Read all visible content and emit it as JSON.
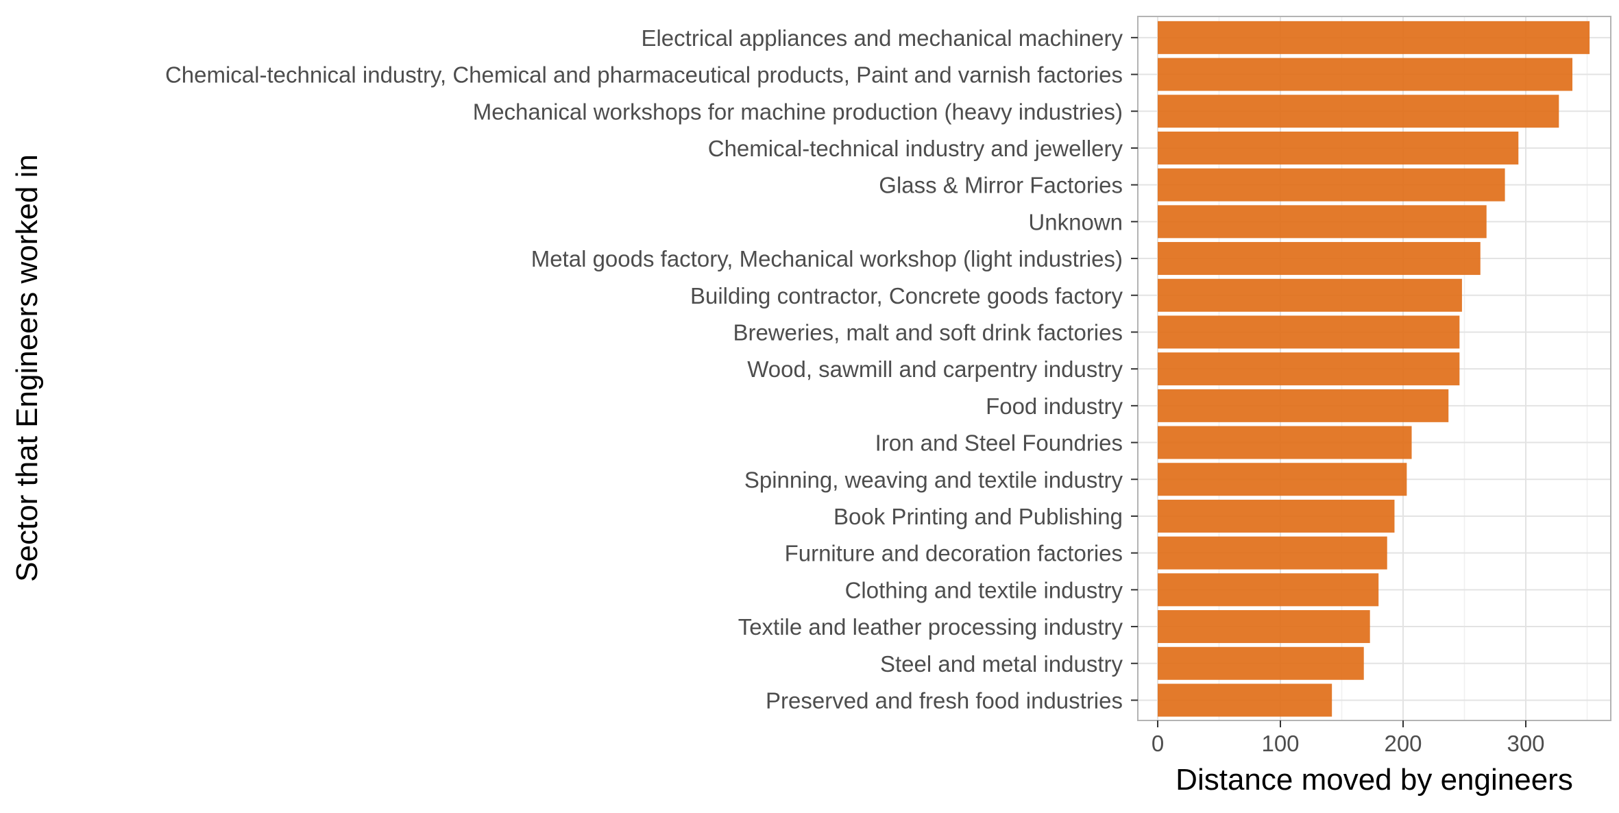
{
  "chart_data": {
    "type": "bar",
    "orientation": "horizontal",
    "title": "",
    "xlabel": "Distance moved by engineers",
    "ylabel": "Sector that Engineers worked in",
    "xlim": [
      0,
      370
    ],
    "xticks": [
      0,
      100,
      200,
      300
    ],
    "grid": true,
    "legend": "none",
    "bar_color": "#e06c14",
    "categories": [
      "Electrical appliances and mechanical machinery",
      "Chemical-technical industry, Chemical and pharmaceutical products, Paint and varnish factories",
      "Mechanical workshops for machine production (heavy industries)",
      "Chemical-technical industry and jewellery",
      "Glass & Mirror Factories",
      "Unknown",
      "Metal goods factory, Mechanical workshop (light industries)",
      "Building contractor, Concrete goods factory",
      "Breweries, malt and soft drink factories",
      "Wood, sawmill and carpentry industry",
      "Food industry",
      "Iron and Steel Foundries",
      "Spinning, weaving and textile industry",
      "Book Printing and Publishing",
      "Furniture and decoration factories",
      "Clothing and textile industry",
      "Textile and leather processing industry",
      "Steel and metal industry",
      "Preserved and fresh food industries"
    ],
    "values": [
      352,
      338,
      327,
      294,
      283,
      268,
      263,
      248,
      246,
      246,
      237,
      207,
      203,
      193,
      187,
      180,
      173,
      168,
      142
    ]
  }
}
